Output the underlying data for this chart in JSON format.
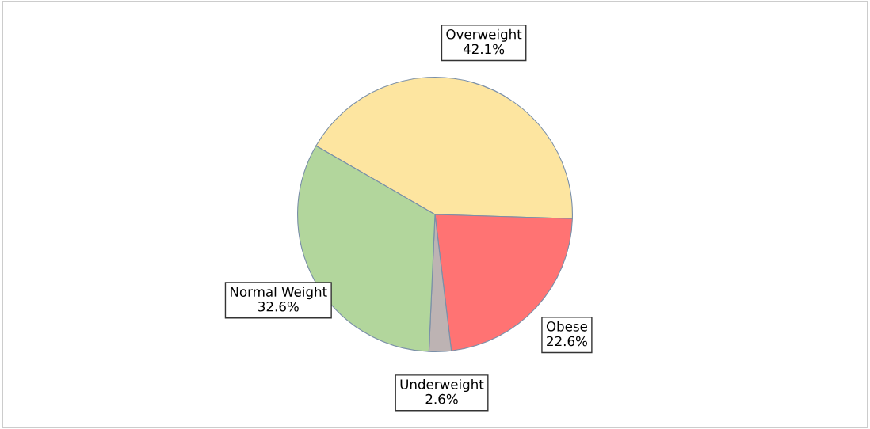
{
  "chart_data": {
    "type": "pie",
    "categories": [
      "Overweight",
      "Obese",
      "Underweight",
      "Normal Weight"
    ],
    "values": [
      42.1,
      22.6,
      2.6,
      32.6
    ],
    "value_labels": [
      "42.1%",
      "22.6%",
      "2.6%",
      "32.6%"
    ],
    "colors": [
      "#fde5a0",
      "#ff7373",
      "#bdb3b3",
      "#b2d69c"
    ]
  }
}
